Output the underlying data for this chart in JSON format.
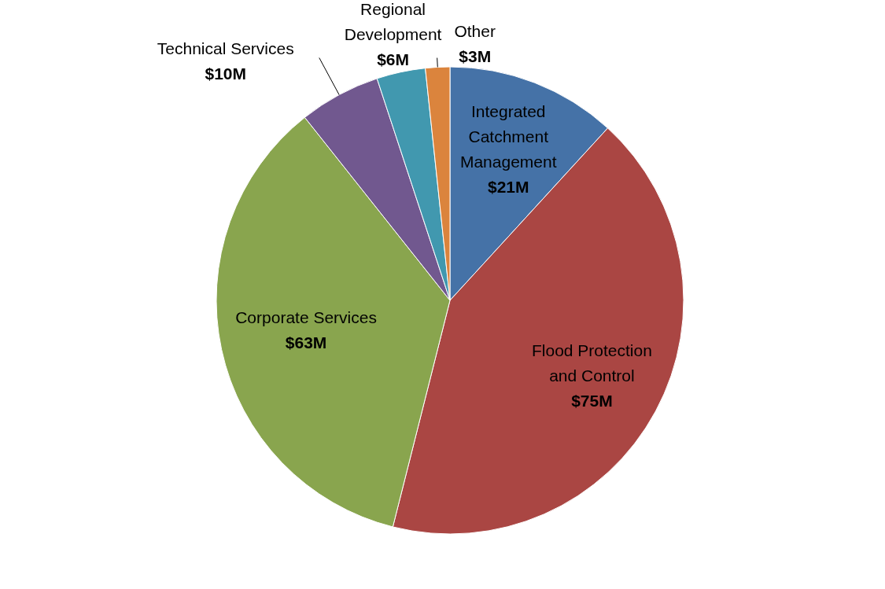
{
  "chart_data": {
    "type": "pie",
    "categories": [
      "Integrated Catchment Management",
      "Flood Protection and Control",
      "Corporate Services",
      "Technical Services",
      "Regional Development",
      "Other"
    ],
    "values": [
      21,
      75,
      63,
      10,
      6,
      3
    ],
    "value_labels": [
      "$21M",
      "$75M",
      "$63M",
      "$10M",
      "$6M",
      "$3M"
    ],
    "colors": [
      "#4572a7",
      "#aa4643",
      "#89a54e",
      "#71588f",
      "#4198af",
      "#db843d"
    ]
  }
}
